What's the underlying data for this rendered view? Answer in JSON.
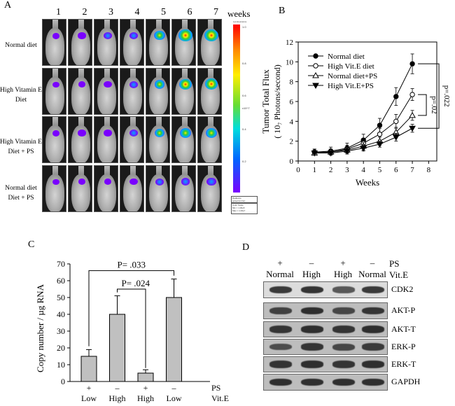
{
  "panelA": {
    "letter": "A",
    "weeks_label": "weeks",
    "week_numbers": [
      "1",
      "2",
      "3",
      "4",
      "5",
      "6",
      "7"
    ],
    "row_labels": [
      [
        "Normal diet"
      ],
      [
        "High Vitamin E",
        "Diet"
      ],
      [
        "High Vitamin E",
        "Diet + PS"
      ],
      [
        "Normal diet",
        "Diet + PS"
      ]
    ],
    "colorbar": {
      "top_label": "Luminescence",
      "ticks": [
        "1.0",
        "0.8",
        "0.6",
        "x10^7",
        "0.4",
        "0.2"
      ],
      "bottom_lines": [
        "Radiance",
        "(p/sec/cm²/sr)",
        "Color Scale",
        "Min = 1.00e5",
        "Max = 1.00e7"
      ]
    },
    "colors": {
      "cool": "#7a00ff",
      "mid": "#00aaff",
      "warm": "#33cc33",
      "hot": "#ffee00",
      "peak": "#ff2200"
    }
  },
  "panelB": {
    "letter": "B",
    "chart_data": {
      "type": "line",
      "xlabel": "Weeks",
      "ylabel_line1": "Tumor Total Flux",
      "ylabel_line2": "( 10₇ Photons/second)",
      "x_ticks": [
        "0",
        "1",
        "2",
        "3",
        "4",
        "5",
        "6",
        "7",
        "8"
      ],
      "y_ticks": [
        "0",
        "2",
        "4",
        "6",
        "8",
        "10",
        "12"
      ],
      "xlim": [
        0,
        8.5
      ],
      "ylim": [
        0,
        12
      ],
      "x": [
        1,
        2,
        3,
        4,
        5,
        6,
        7
      ],
      "series": [
        {
          "name": "Normal diet",
          "marker": "filled-circle",
          "values": [
            0.9,
            1.0,
            1.3,
            2.1,
            3.6,
            6.5,
            9.8
          ],
          "errors": [
            0.3,
            0.4,
            0.5,
            0.6,
            0.7,
            0.9,
            1.0
          ]
        },
        {
          "name": "High Vit.E diet",
          "marker": "open-circle",
          "values": [
            0.9,
            0.9,
            1.2,
            1.8,
            2.7,
            4.0,
            6.7
          ],
          "errors": [
            0.3,
            0.3,
            0.4,
            0.5,
            0.6,
            0.7,
            0.6
          ]
        },
        {
          "name": "Normal diet+PS",
          "marker": "open-triangle",
          "values": [
            0.8,
            0.9,
            1.1,
            1.5,
            2.0,
            2.9,
            4.6
          ],
          "errors": [
            0.2,
            0.3,
            0.3,
            0.4,
            0.4,
            0.5,
            0.5
          ]
        },
        {
          "name": "High Vit.E+PS",
          "marker": "filled-triangle-down",
          "values": [
            0.8,
            0.8,
            1.0,
            1.3,
            1.7,
            2.4,
            3.3
          ],
          "errors": [
            0.2,
            0.2,
            0.3,
            0.3,
            0.3,
            0.4,
            0.4
          ]
        }
      ],
      "annotations": [
        "p=.022",
        "p=.02"
      ]
    }
  },
  "panelC": {
    "letter": "C",
    "chart_data": {
      "type": "bar",
      "ylabel": "Copy number / µg RNA",
      "y_ticks": [
        "0",
        "10",
        "20",
        "30",
        "40",
        "50",
        "60",
        "70"
      ],
      "ylim": [
        0,
        70
      ],
      "categories": [
        "Low",
        "High",
        "High",
        "Low"
      ],
      "ps_signs": [
        "+",
        "–",
        "+",
        "–"
      ],
      "row_labels": [
        "PS",
        "Vit.E"
      ],
      "values": [
        15,
        40,
        5,
        50
      ],
      "errors": [
        4,
        11,
        2,
        11
      ],
      "annotations": [
        "P= .033",
        "P= .024"
      ],
      "bar_color": "#c0c0c0"
    }
  },
  "panelD": {
    "letter": "D",
    "ps_signs": [
      "+",
      "–",
      "+",
      "–"
    ],
    "ps_label": "PS",
    "conditions": [
      "Normal",
      "High",
      "High",
      "Normal"
    ],
    "vite_label": "Vit.E",
    "blots": [
      "CDK2",
      "AKT-P",
      "AKT-T",
      "ERK-P",
      "ERK-T",
      "GAPDH"
    ]
  }
}
